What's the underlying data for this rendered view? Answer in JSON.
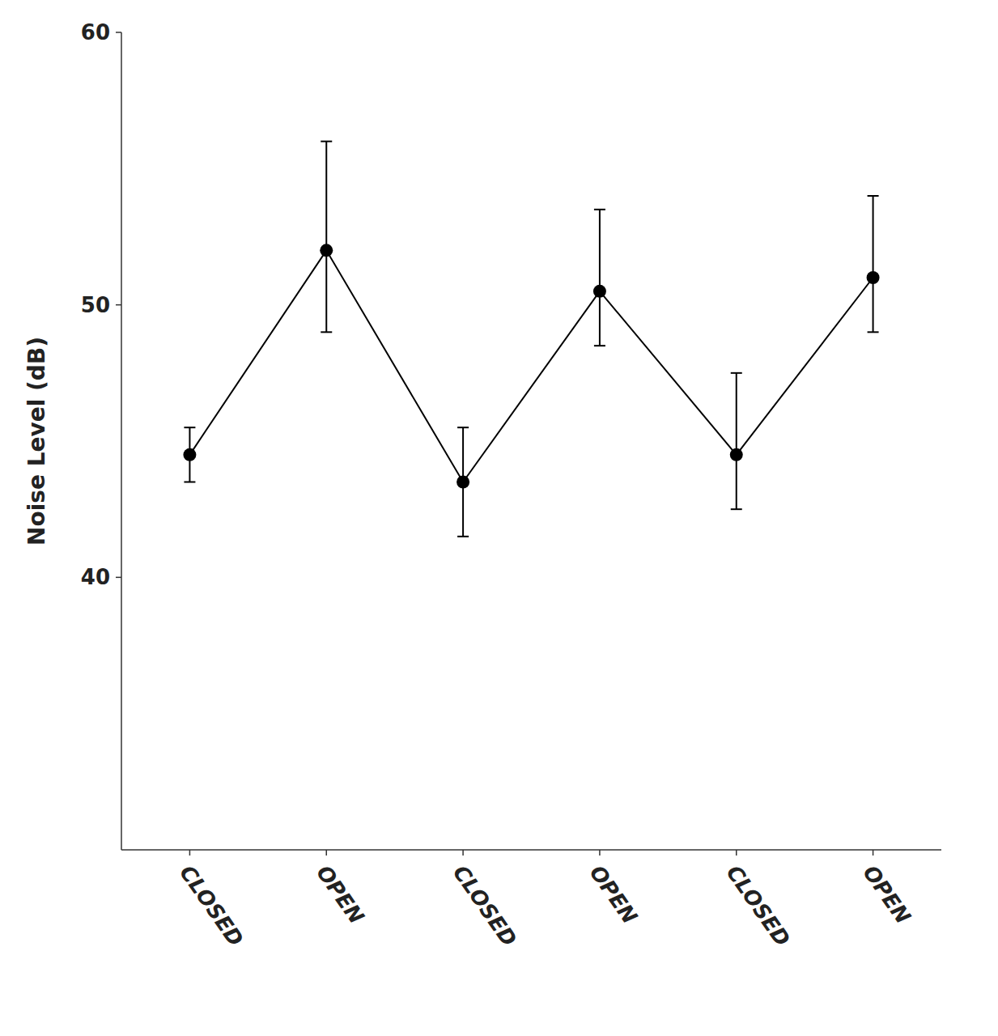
{
  "chart_data": {
    "type": "line",
    "categories": [
      "CLOSED",
      "OPEN",
      "CLOSED",
      "OPEN",
      "CLOSED",
      "OPEN"
    ],
    "values": [
      44.5,
      52.0,
      43.5,
      50.5,
      44.5,
      51.0
    ],
    "error_upper": [
      1.0,
      4.0,
      2.0,
      3.0,
      3.0,
      3.0
    ],
    "error_lower": [
      1.0,
      3.0,
      2.0,
      2.0,
      2.0,
      2.0
    ],
    "ylabel": "Noise Level (dB)",
    "ylim": [
      30,
      60
    ],
    "yticks": [
      40,
      50,
      60
    ],
    "color": "#000000",
    "marker": "circle",
    "grid": false
  }
}
